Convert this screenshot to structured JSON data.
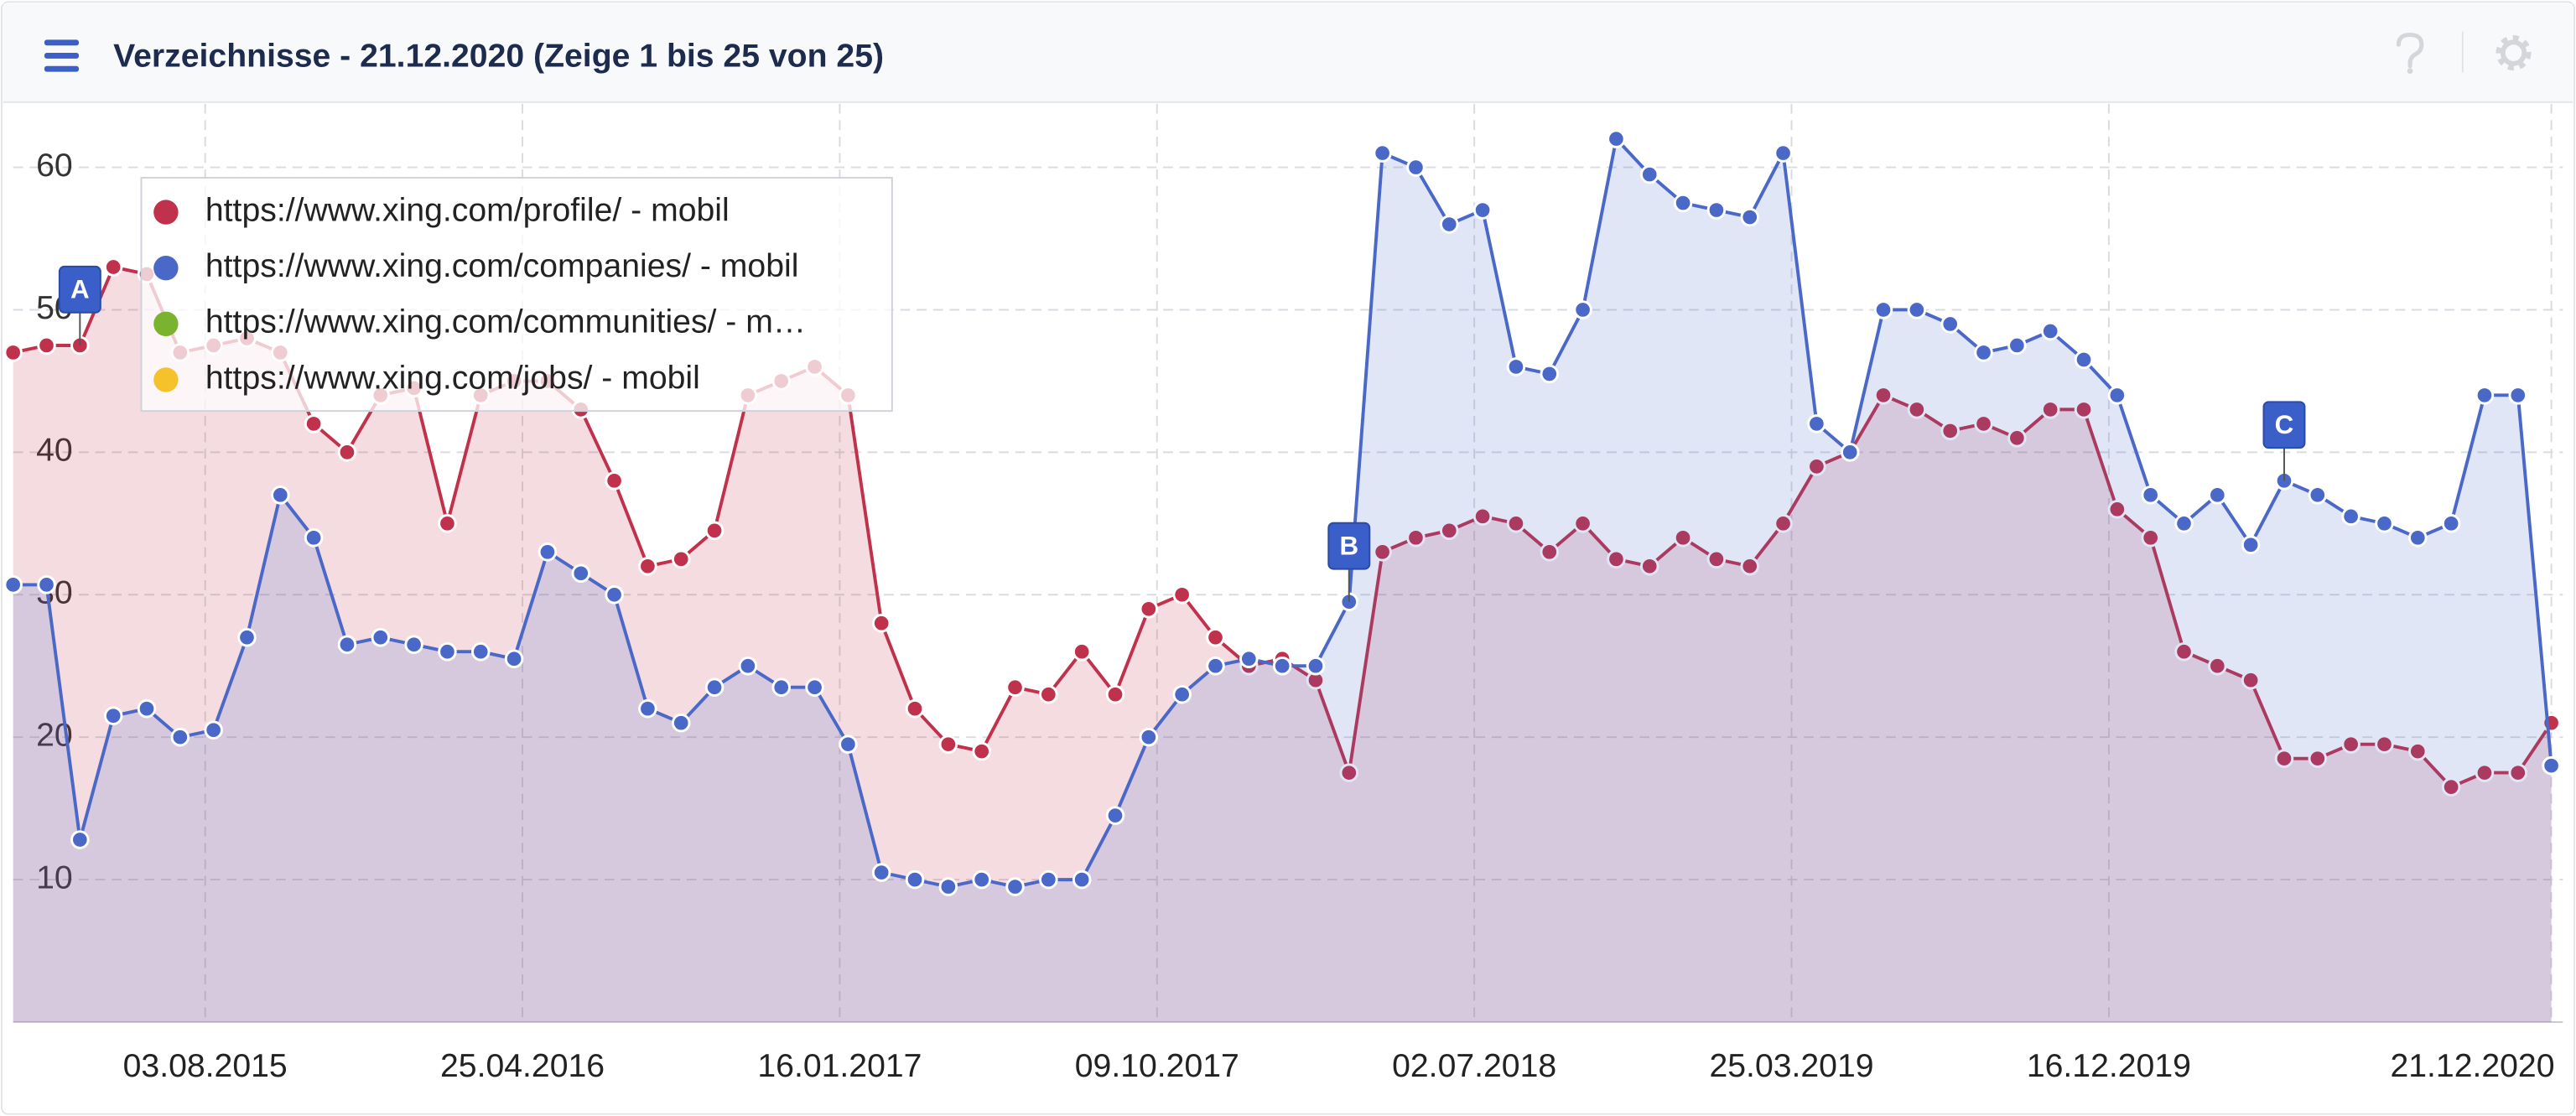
{
  "chart_data": {
    "type": "area",
    "title": "Verzeichnisse - 21.12.2020 (Zeige 1 bis 25 von 25)",
    "x": [
      "23.02.2015",
      "23.03.2015",
      "20.04.2015",
      "18.05.2015",
      "15.06.2015",
      "13.07.2015",
      "10.08.2015",
      "07.09.2015",
      "05.10.2015",
      "02.11.2015",
      "30.11.2015",
      "28.12.2015",
      "25.01.2016",
      "22.02.2016",
      "21.03.2016",
      "18.04.2016",
      "16.05.2016",
      "13.06.2016",
      "11.07.2016",
      "08.08.2016",
      "05.09.2016",
      "03.10.2016",
      "31.10.2016",
      "28.11.2016",
      "26.12.2016",
      "23.01.2017",
      "20.02.2017",
      "20.03.2017",
      "17.04.2017",
      "15.05.2017",
      "12.06.2017",
      "10.07.2017",
      "07.08.2017",
      "04.09.2017",
      "02.10.2017",
      "30.10.2017",
      "27.11.2017",
      "25.12.2017",
      "22.01.2018",
      "19.02.2018",
      "19.03.2018",
      "16.04.2018",
      "14.05.2018",
      "11.06.2018",
      "09.07.2018",
      "06.08.2018",
      "03.09.2018",
      "01.10.2018",
      "29.10.2018",
      "26.11.2018",
      "24.12.2018",
      "21.01.2019",
      "18.02.2019",
      "18.03.2019",
      "15.04.2019",
      "13.05.2019",
      "10.06.2019",
      "08.07.2019",
      "05.08.2019",
      "02.09.2019",
      "30.09.2019",
      "28.10.2019",
      "25.11.2019",
      "23.12.2019",
      "20.01.2020",
      "17.02.2020",
      "16.03.2020",
      "13.04.2020",
      "11.05.2020",
      "08.06.2020",
      "06.07.2020",
      "03.08.2020",
      "31.08.2020",
      "28.09.2020",
      "26.10.2020",
      "23.11.2020",
      "21.12.2020"
    ],
    "series": [
      {
        "name": "https://www.xing.com/profile/ - mobil",
        "color": "#c0314b",
        "values": [
          47,
          47.5,
          47.5,
          53,
          52.5,
          47,
          47.5,
          48,
          47,
          42,
          40,
          44,
          44.5,
          35,
          44,
          45,
          45,
          43,
          38,
          32,
          32.5,
          34.5,
          44,
          45,
          46,
          44,
          28,
          22,
          19.5,
          19,
          23.5,
          23,
          26,
          23,
          29,
          30,
          27,
          25,
          25.5,
          24,
          17.5,
          33,
          34,
          34.5,
          35.5,
          35,
          33,
          35,
          32.5,
          32,
          34,
          32.5,
          32,
          35,
          39,
          40,
          44,
          43,
          41.5,
          42,
          41,
          43,
          43,
          36,
          34,
          26,
          25,
          24,
          18.5,
          18.5,
          19.5,
          19.5,
          19,
          16.5,
          17.5,
          17.5,
          21
        ]
      },
      {
        "name": "https://www.xing.com/companies/ - mobil",
        "color": "#4a68c8",
        "values": [
          30.7,
          30.7,
          12.8,
          21.5,
          22,
          20,
          20.5,
          27,
          37,
          34,
          26.5,
          27,
          26.5,
          26,
          26,
          25.5,
          33,
          31.5,
          30,
          22,
          21,
          23.5,
          25,
          23.5,
          23.5,
          19.5,
          10.5,
          10,
          9.5,
          10,
          9.5,
          10,
          10,
          14.5,
          20,
          23,
          25,
          25.5,
          25,
          25,
          29.5,
          61,
          60,
          56,
          57,
          46,
          45.5,
          50,
          62,
          59.5,
          57.5,
          57,
          56.5,
          61,
          42,
          40,
          50,
          50,
          49,
          47,
          47.5,
          48.5,
          46.5,
          44,
          37,
          35,
          37,
          33.5,
          38,
          37,
          35.5,
          35,
          34,
          35,
          44,
          44,
          18
        ]
      },
      {
        "name": "https://www.xing.com/communities/ - m…",
        "color": "#7ab32e"
      },
      {
        "name": "https://www.xing.com/jobs/ - mobil",
        "color": "#f5c22c"
      }
    ],
    "xlim": [
      "23.02.2015",
      "21.12.2020"
    ],
    "xticks": [
      "03.08.2015",
      "25.04.2016",
      "16.01.2017",
      "09.10.2017",
      "02.07.2018",
      "25.03.2019",
      "16.12.2019",
      "21.12.2020"
    ],
    "ylim": [
      0,
      64
    ],
    "yticks": [
      10,
      20,
      30,
      40,
      50,
      60
    ],
    "grid": true,
    "legend": "top-left",
    "annotations": [
      {
        "label": "A",
        "x": "20.04.2015"
      },
      {
        "label": "B",
        "x": "19.03.2018"
      },
      {
        "label": "C",
        "x": "11.05.2020"
      }
    ]
  }
}
